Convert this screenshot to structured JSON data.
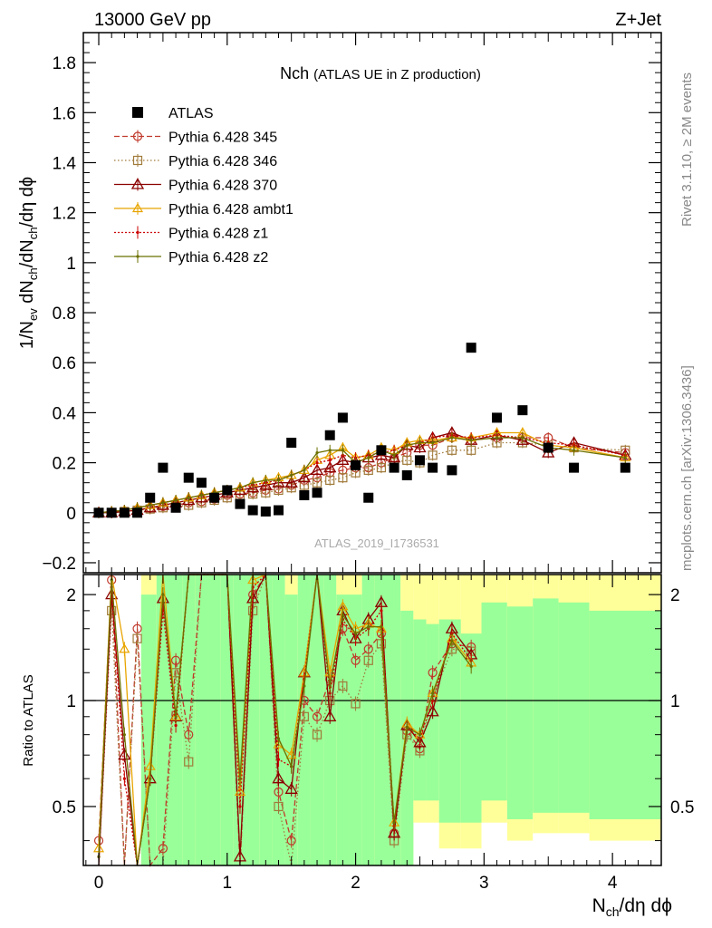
{
  "header": {
    "left": "13000 GeV pp",
    "right": "Z+Jet"
  },
  "side_labels": {
    "rivet": "Rivet 3.1.10, ≥ 2M events",
    "mcplots": "mcplots.cern.ch [arXiv:1306.3436]"
  },
  "main_title": {
    "main": "Nch",
    "sub": "(ATLAS UE in Z production)"
  },
  "watermark": "ATLAS_2019_I1736531",
  "colors": {
    "data": "#000000",
    "p345": "#c0392b",
    "p346": "#a07a3a",
    "p370": "#8b0000",
    "ambt1": "#e8a500",
    "z1": "#cc0000",
    "z2": "#6b7000",
    "band_inner": "#99ff99",
    "band_outer": "#ffff99"
  },
  "chart_data": [
    {
      "type": "scatter",
      "name": "main",
      "ylabel": "1/N_ev dN_ch/dN_ch/dη dφ",
      "ylim": [
        -0.24,
        1.92
      ],
      "xlim": [
        -0.12,
        4.38
      ],
      "yticks": [
        -0.2,
        0,
        0.2,
        0.4,
        0.6,
        0.8,
        1,
        1.2,
        1.4,
        1.6,
        1.8
      ],
      "ytick_labels": [
        "−0.2",
        "0",
        "0.2",
        "0.4",
        "0.6",
        "0.8",
        "1",
        "1.2",
        "1.4",
        "1.6",
        "1.8"
      ],
      "legend": {
        "placement": "top-left",
        "entries": [
          "ATLAS",
          "Pythia 6.428 345",
          "Pythia 6.428 346",
          "Pythia 6.428 370",
          "Pythia 6.428 ambt1",
          "Pythia 6.428 z1",
          "Pythia 6.428 z2"
        ]
      },
      "data_points": {
        "name": "ATLAS",
        "x": [
          0.0,
          0.1,
          0.2,
          0.3,
          0.4,
          0.5,
          0.6,
          0.7,
          0.8,
          0.9,
          1.0,
          1.1,
          1.2,
          1.3,
          1.4,
          1.5,
          1.6,
          1.7,
          1.8,
          1.9,
          2.0,
          2.1,
          2.2,
          2.3,
          2.4,
          2.5,
          2.6,
          2.75,
          2.9,
          3.1,
          3.3,
          3.5,
          3.7,
          4.1
        ],
        "y": [
          0.0,
          0.0,
          0.0,
          0.0,
          0.06,
          0.18,
          0.02,
          0.14,
          0.12,
          0.06,
          0.09,
          0.035,
          0.01,
          0.005,
          0.01,
          0.28,
          0.07,
          0.08,
          0.31,
          0.38,
          0.19,
          0.06,
          0.25,
          0.18,
          0.15,
          0.21,
          0.18,
          0.17,
          0.66,
          0.38,
          0.41,
          0.26,
          0.18,
          0.18
        ]
      },
      "mc_x": [
        0.0,
        0.1,
        0.2,
        0.3,
        0.4,
        0.5,
        0.6,
        0.7,
        0.8,
        0.9,
        1.0,
        1.1,
        1.2,
        1.3,
        1.4,
        1.5,
        1.6,
        1.7,
        1.8,
        1.9,
        2.0,
        2.1,
        2.2,
        2.3,
        2.4,
        2.5,
        2.6,
        2.75,
        2.9,
        3.1,
        3.3,
        3.5,
        3.7,
        4.1
      ],
      "series": [
        {
          "name": "Pythia 6.428 345",
          "y": [
            0.0,
            0.0,
            0.005,
            0.01,
            0.02,
            0.025,
            0.03,
            0.04,
            0.045,
            0.055,
            0.07,
            0.075,
            0.08,
            0.09,
            0.095,
            0.11,
            0.13,
            0.14,
            0.16,
            0.17,
            0.18,
            0.18,
            0.2,
            0.22,
            0.24,
            0.27,
            0.27,
            0.3,
            0.29,
            0.3,
            0.3,
            0.3,
            0.26,
            0.24
          ]
        },
        {
          "name": "Pythia 6.428 346",
          "y": [
            0.0,
            0.0,
            0.005,
            0.01,
            0.015,
            0.02,
            0.025,
            0.03,
            0.04,
            0.05,
            0.06,
            0.07,
            0.075,
            0.08,
            0.09,
            0.1,
            0.11,
            0.12,
            0.13,
            0.14,
            0.16,
            0.17,
            0.18,
            0.2,
            0.21,
            0.2,
            0.23,
            0.25,
            0.25,
            0.28,
            0.28,
            0.27,
            0.26,
            0.25
          ]
        },
        {
          "name": "Pythia 6.428 370",
          "y": [
            0.0,
            0.0,
            0.005,
            0.01,
            0.02,
            0.03,
            0.04,
            0.05,
            0.06,
            0.07,
            0.08,
            0.09,
            0.1,
            0.11,
            0.12,
            0.12,
            0.14,
            0.17,
            0.18,
            0.21,
            0.2,
            0.22,
            0.23,
            0.22,
            0.27,
            0.26,
            0.3,
            0.32,
            0.29,
            0.31,
            0.29,
            0.24,
            0.28,
            0.23
          ]
        },
        {
          "name": "Pythia 6.428 ambt1",
          "y": [
            0.0,
            0.005,
            0.01,
            0.02,
            0.03,
            0.04,
            0.05,
            0.06,
            0.07,
            0.08,
            0.09,
            0.1,
            0.12,
            0.13,
            0.14,
            0.15,
            0.17,
            0.21,
            0.23,
            0.26,
            0.22,
            0.23,
            0.26,
            0.25,
            0.28,
            0.29,
            0.29,
            0.3,
            0.3,
            0.32,
            0.32,
            0.27,
            0.26,
            0.22
          ]
        },
        {
          "name": "Pythia 6.428 z1",
          "y": [
            0.0,
            0.005,
            0.01,
            0.02,
            0.03,
            0.04,
            0.05,
            0.06,
            0.07,
            0.08,
            0.09,
            0.1,
            0.11,
            0.12,
            0.13,
            0.15,
            0.17,
            0.2,
            0.21,
            0.23,
            0.22,
            0.23,
            0.24,
            0.25,
            0.27,
            0.28,
            0.3,
            0.31,
            0.3,
            0.31,
            0.3,
            0.28,
            0.27,
            0.23
          ]
        },
        {
          "name": "Pythia 6.428 z2",
          "y": [
            0.0,
            0.005,
            0.01,
            0.02,
            0.03,
            0.04,
            0.05,
            0.06,
            0.07,
            0.08,
            0.09,
            0.1,
            0.12,
            0.13,
            0.13,
            0.15,
            0.17,
            0.24,
            0.25,
            0.25,
            0.2,
            0.22,
            0.25,
            0.23,
            0.27,
            0.28,
            0.28,
            0.3,
            0.29,
            0.3,
            0.3,
            0.26,
            0.25,
            0.22
          ]
        }
      ]
    },
    {
      "type": "line",
      "name": "ratio",
      "ylabel": "Ratio to ATLAS",
      "xlabel": "N_ch/dη dφ",
      "ylim": [
        0.34,
        2.28
      ],
      "scale_note": "log",
      "xticks": [
        0,
        1,
        2,
        3,
        4
      ],
      "xtick_labels": [
        "0",
        "1",
        "2",
        "3",
        "4"
      ],
      "yticks": [
        0.5,
        1,
        2
      ],
      "ytick_labels": [
        "0.5",
        "1",
        "2"
      ],
      "reference": 1,
      "bands": {
        "edges": [
          0.33,
          0.45,
          0.55,
          0.65,
          0.75,
          0.85,
          0.95,
          1.05,
          1.15,
          1.25,
          1.35,
          1.45,
          1.55,
          1.65,
          1.75,
          1.85,
          1.95,
          2.05,
          2.15,
          2.25,
          2.35,
          2.45,
          2.55,
          2.65,
          2.82,
          2.98,
          3.18,
          3.38,
          3.58,
          3.82,
          4.38
        ],
        "inner_lo": [
          0.34,
          0.34,
          0.34,
          0.34,
          0.34,
          0.34,
          0.34,
          0.34,
          0.34,
          0.34,
          0.34,
          0.34,
          0.34,
          0.34,
          0.34,
          0.34,
          0.34,
          0.34,
          0.34,
          0.34,
          0.34,
          0.34,
          0.34,
          0.34,
          0.34,
          0.34,
          0.34,
          0.34,
          0.34,
          0.34
        ],
        "inner_hi": [
          2.28,
          2.28,
          2.28,
          2.28,
          2.28,
          2.28,
          2.28,
          2.28,
          2.28,
          2.28,
          2.28,
          2.28,
          2.28,
          2.28,
          2.28,
          2.28,
          2.28,
          2.28,
          2.28,
          2.28,
          2.28,
          2.28,
          2.28,
          2.28,
          2.28,
          2.28,
          2.28,
          2.28,
          2.28,
          2.28
        ],
        "outer_lo": [
          0.34,
          0.34,
          0.34,
          0.34,
          0.34,
          0.34,
          0.34,
          0.34,
          0.34,
          0.34,
          0.34,
          0.34,
          0.34,
          0.34,
          0.34,
          0.34,
          0.34,
          0.34,
          0.34,
          0.34,
          0.34,
          0.45,
          0.45,
          0.38,
          0.38,
          0.45,
          0.4,
          0.42,
          0.42,
          0.4
        ],
        "outer_hi": [
          2.28,
          2.28,
          2.28,
          2.28,
          2.28,
          2.28,
          2.28,
          2.28,
          2.28,
          2.28,
          2.28,
          2.28,
          2.28,
          2.28,
          2.28,
          2.28,
          2.28,
          2.28,
          2.28,
          2.28,
          2.28,
          2.28,
          2.28,
          2.28,
          2.28,
          2.28,
          2.28,
          2.28,
          2.28,
          2.28
        ],
        "green_lo": [
          0.34,
          0.34,
          0.34,
          0.34,
          0.34,
          0.34,
          0.34,
          0.34,
          0.34,
          0.34,
          0.34,
          0.34,
          0.34,
          0.34,
          0.34,
          0.34,
          0.34,
          0.34,
          0.34,
          0.34,
          0.34,
          0.52,
          0.52,
          0.45,
          0.45,
          0.52,
          0.46,
          0.48,
          0.48,
          0.46
        ],
        "green_hi": [
          2.0,
          2.28,
          2.28,
          2.28,
          2.28,
          2.28,
          2.28,
          2.28,
          2.28,
          2.28,
          2.28,
          2.0,
          2.28,
          2.28,
          2.28,
          2.0,
          2.0,
          2.28,
          2.28,
          2.28,
          1.8,
          1.7,
          1.65,
          1.7,
          1.55,
          1.9,
          1.85,
          1.95,
          1.9,
          1.8
        ]
      },
      "series": [
        {
          "name": "Pythia 6.428 345",
          "y": [
            null,
            null,
            null,
            0.4,
            2.2,
            0.34,
            1.6,
            0.34,
            0.38,
            1.3,
            0.8,
            2.28,
            2.28,
            2.28,
            0.34,
            2.0,
            2.28,
            0.55,
            0.4,
            1.0,
            0.9,
            1.15,
            1.6,
            1.3,
            1.4,
            1.55,
            0.42,
            0.82,
            0.73,
            1.2,
            1.45,
            1.42
          ]
        },
        {
          "name": "Pythia 6.428 346",
          "y": [
            null,
            null,
            null,
            0.34,
            1.8,
            0.34,
            1.5,
            0.34,
            0.34,
            1.2,
            0.67,
            2.28,
            2.28,
            2.28,
            0.34,
            1.8,
            2.28,
            0.5,
            0.34,
            0.9,
            0.8,
            1.0,
            1.1,
            0.98,
            1.3,
            1.45,
            0.4,
            0.8,
            0.72,
            1.02,
            1.4,
            1.38
          ]
        },
        {
          "name": "Pythia 6.428 370",
          "y": [
            null,
            null,
            null,
            0.34,
            2.0,
            0.7,
            0.34,
            0.6,
            1.95,
            0.9,
            2.28,
            2.28,
            2.28,
            2.28,
            0.36,
            1.95,
            2.28,
            0.6,
            0.56,
            1.2,
            2.28,
            0.9,
            1.8,
            1.5,
            1.7,
            1.9,
            0.42,
            0.85,
            0.76,
            0.93,
            1.6,
            1.35
          ]
        },
        {
          "name": "Pythia 6.428 ambt1",
          "y": [
            null,
            null,
            null,
            0.38,
            2.28,
            1.4,
            0.34,
            0.65,
            2.28,
            0.9,
            2.28,
            2.28,
            2.28,
            2.28,
            0.55,
            2.2,
            2.28,
            0.75,
            0.7,
            1.2,
            2.28,
            1.2,
            1.85,
            1.6,
            1.65,
            1.6,
            0.45,
            0.86,
            0.8,
            1.05,
            1.5,
            1.28
          ]
        },
        {
          "name": "Pythia 6.428 z1",
          "y": [
            null,
            null,
            null,
            0.36,
            2.1,
            0.6,
            0.34,
            0.6,
            1.8,
            0.85,
            2.28,
            2.28,
            2.28,
            2.28,
            0.5,
            2.1,
            2.28,
            0.68,
            0.65,
            1.15,
            2.28,
            1.05,
            1.7,
            1.5,
            1.6,
            1.8,
            0.44,
            0.84,
            0.78,
            1.0,
            1.55,
            1.3
          ]
        },
        {
          "name": "Pythia 6.428 z2",
          "y": [
            null,
            null,
            null,
            0.36,
            2.2,
            0.8,
            0.34,
            0.6,
            2.0,
            0.9,
            2.28,
            2.28,
            2.28,
            2.28,
            0.6,
            2.28,
            2.28,
            0.78,
            0.65,
            1.1,
            2.28,
            1.1,
            1.75,
            1.55,
            1.62,
            1.62,
            0.45,
            0.84,
            0.8,
            1.05,
            1.48,
            1.25
          ]
        }
      ]
    }
  ]
}
